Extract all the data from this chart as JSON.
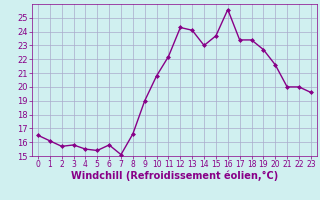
{
  "x": [
    0,
    1,
    2,
    3,
    4,
    5,
    6,
    7,
    8,
    9,
    10,
    11,
    12,
    13,
    14,
    15,
    16,
    17,
    18,
    19,
    20,
    21,
    22,
    23
  ],
  "y": [
    16.5,
    16.1,
    15.7,
    15.8,
    15.5,
    15.4,
    15.8,
    15.1,
    16.6,
    19.0,
    20.8,
    22.2,
    24.3,
    24.1,
    23.0,
    23.7,
    25.6,
    23.4,
    23.4,
    22.7,
    21.6,
    20.0,
    20.0,
    19.6
  ],
  "line_color": "#880088",
  "marker": "D",
  "marker_size": 2,
  "bg_color": "#d0f0f0",
  "grid_color": "#aaaacc",
  "xlabel": "Windchill (Refroidissement éolien,°C)",
  "ylim": [
    15,
    26
  ],
  "xlim": [
    -0.5,
    23.5
  ],
  "yticks": [
    15,
    16,
    17,
    18,
    19,
    20,
    21,
    22,
    23,
    24,
    25
  ],
  "xticks": [
    0,
    1,
    2,
    3,
    4,
    5,
    6,
    7,
    8,
    9,
    10,
    11,
    12,
    13,
    14,
    15,
    16,
    17,
    18,
    19,
    20,
    21,
    22,
    23
  ],
  "tick_color": "#880088",
  "label_color": "#880088",
  "xlabel_fontsize": 7,
  "tick_fontsize": 6,
  "xtick_fontsize": 5.5,
  "linewidth": 1.0
}
